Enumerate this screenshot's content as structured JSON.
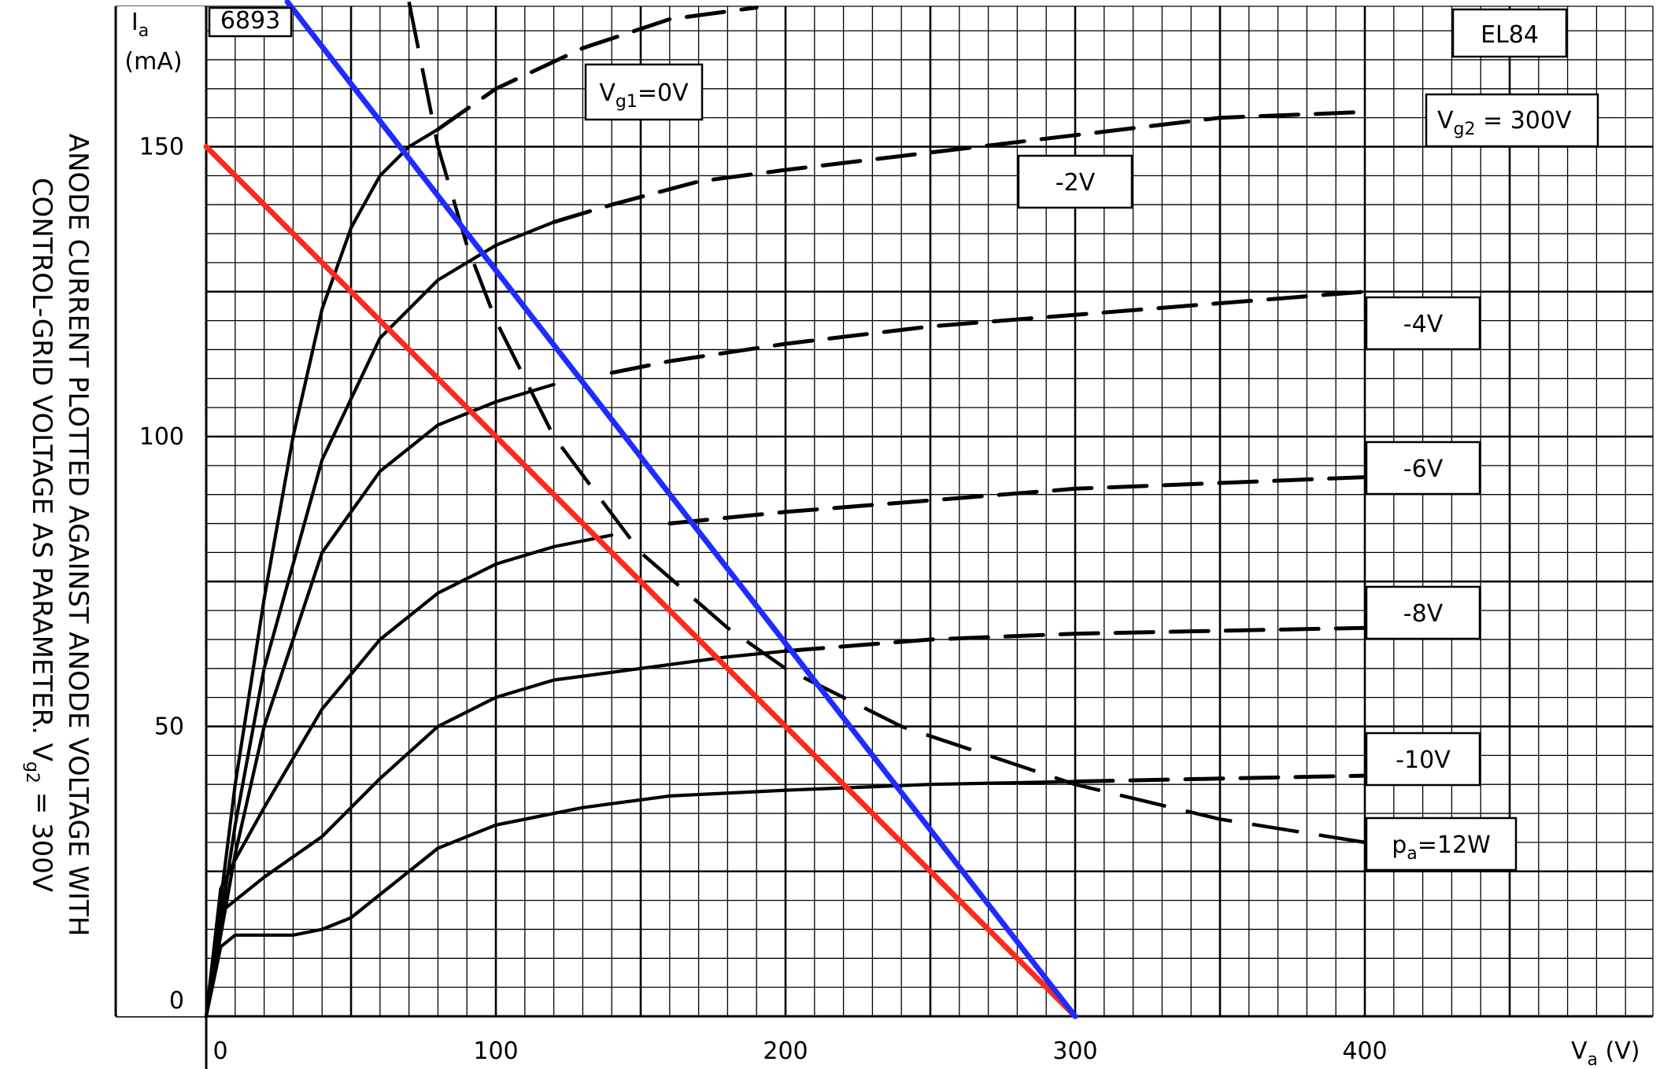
{
  "chart_data": {
    "type": "line",
    "side_title": [
      "ANODE CURRENT PLOTTED AGAINST ANODE VOLTAGE WITH",
      "CONTROL-GRID VOLTAGE AS PARAMETER.  V"
    ],
    "side_title_subscript": "g2",
    "side_title_suffix": " = 300V",
    "corner_code": "6893",
    "tube_label": "EL84",
    "screen_voltage_label": "V",
    "screen_voltage_label_sub": "g2",
    "screen_voltage_label_suffix": " = 300V",
    "xlabel": "V",
    "xlabel_sub": "a",
    "xlabel_unit": " (V)",
    "ylabel": "I",
    "ylabel_sub": "a",
    "ylabel_unit": "(mA)",
    "xlim": [
      0,
      500
    ],
    "ylim": [
      0,
      175
    ],
    "x_ticks": [
      0,
      100,
      200,
      300,
      400
    ],
    "y_ticks": [
      0,
      50,
      100,
      150
    ],
    "grid": true,
    "series": [
      {
        "name": "V",
        "name_sub": "g1",
        "name_suffix": " = 0V",
        "style": "solid-then-dashed",
        "x": [
          0,
          10,
          20,
          30,
          40,
          50,
          60,
          70,
          80,
          100,
          130,
          160,
          190
        ],
        "y": [
          0,
          40,
          72,
          100,
          122,
          136,
          145,
          150,
          153,
          160,
          167,
          172,
          174
        ],
        "dash_from_x": 80
      },
      {
        "name": "-2V",
        "style": "solid-then-dashed",
        "x": [
          0,
          10,
          20,
          40,
          60,
          80,
          100,
          120,
          140,
          170,
          200,
          250,
          300,
          350,
          400
        ],
        "y": [
          0,
          33,
          60,
          96,
          117,
          127,
          133,
          137,
          140,
          144,
          146,
          149,
          152,
          155,
          156
        ],
        "dash_from_x": 120
      },
      {
        "name": "-4V",
        "style": "solid-then-dashed",
        "x": [
          0,
          10,
          20,
          40,
          60,
          80,
          100,
          120,
          140,
          160,
          200,
          250,
          300,
          350,
          400
        ],
        "y": [
          0,
          28,
          50,
          80,
          94,
          102,
          106,
          109,
          111,
          113,
          116,
          119,
          121,
          123,
          125
        ],
        "dash_from_x": 130
      },
      {
        "name": "-6V",
        "style": "solid-then-dashed",
        "x": [
          0,
          5,
          10,
          20,
          40,
          60,
          80,
          100,
          120,
          140,
          160,
          200,
          250,
          300,
          350,
          400
        ],
        "y": [
          0,
          22,
          27,
          36,
          53,
          65,
          73,
          78,
          81,
          83,
          85,
          87,
          89,
          91,
          92,
          93
        ],
        "dash_from_x": 150
      },
      {
        "name": "-8V",
        "style": "solid-then-dashed",
        "x": [
          0,
          5,
          10,
          20,
          40,
          60,
          80,
          100,
          120,
          150,
          180,
          200,
          250,
          300,
          350,
          400
        ],
        "y": [
          0,
          18,
          20,
          24,
          31,
          41,
          50,
          55,
          58,
          60,
          62,
          63,
          65,
          66,
          66.5,
          67
        ],
        "dash_from_x": 200
      },
      {
        "name": "-10V",
        "style": "solid-then-dashed",
        "x": [
          0,
          5,
          10,
          20,
          30,
          40,
          50,
          60,
          70,
          80,
          100,
          130,
          160,
          200,
          250,
          300,
          350,
          400
        ],
        "y": [
          0,
          12,
          14,
          14,
          14,
          15,
          17,
          21,
          25,
          29,
          33,
          36,
          38,
          39,
          40,
          40.5,
          41,
          41.5
        ],
        "dash_from_x": 300
      },
      {
        "name": "p",
        "name_sub": "a",
        "name_suffix": " = 12W",
        "style": "dashed",
        "x": [
          70,
          80,
          90,
          100,
          120,
          150,
          180,
          200,
          240,
          300,
          350,
          400
        ],
        "y": [
          175,
          150,
          133,
          120,
          100,
          80,
          67,
          60,
          50,
          40,
          34,
          30
        ]
      },
      {
        "name": "",
        "style": "red-line",
        "color": "#ff2a1f",
        "x": [
          0,
          300
        ],
        "y": [
          150,
          0
        ]
      },
      {
        "name": "",
        "style": "blue-line",
        "color": "#1f2bff",
        "x": [
          28,
          300
        ],
        "y": [
          175,
          0
        ]
      }
    ],
    "curve_labels": [
      {
        "key": "vg1",
        "text": "V",
        "sub": "g1",
        "suffix": "=0V"
      },
      {
        "key": "m2",
        "text": "-2V"
      },
      {
        "key": "m4",
        "text": "-4V"
      },
      {
        "key": "m6",
        "text": "-6V"
      },
      {
        "key": "m8",
        "text": "-8V"
      },
      {
        "key": "m10",
        "text": "-10V"
      },
      {
        "key": "pa",
        "text": "p",
        "sub": "a",
        "suffix": "=12W"
      }
    ]
  }
}
